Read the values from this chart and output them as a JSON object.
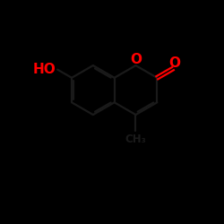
{
  "bg_color": "#000000",
  "bond_color": "#1a1a1a",
  "oxygen_color": "#ff0000",
  "figsize": [
    2.5,
    2.5
  ],
  "dpi": 100,
  "bond_lw": 1.6,
  "label_fs": 11,
  "xlim": [
    -1,
    11
  ],
  "ylim": [
    -1,
    11
  ]
}
